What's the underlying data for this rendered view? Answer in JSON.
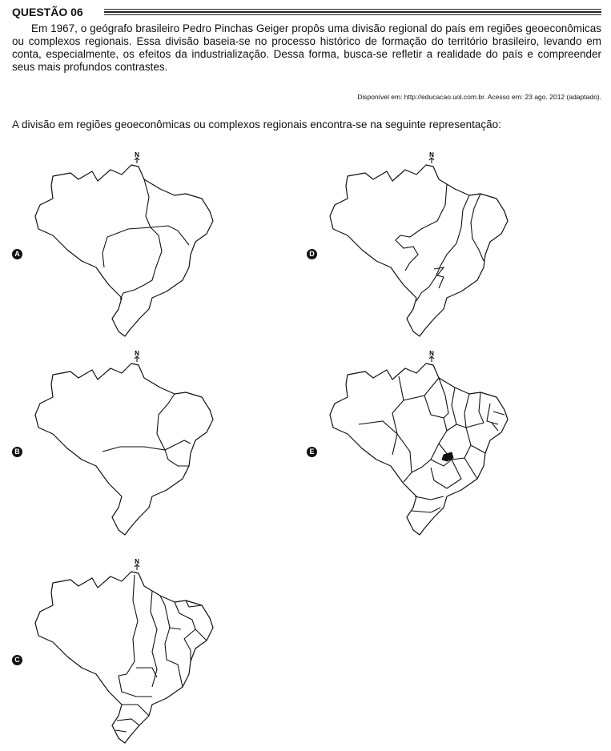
{
  "question": {
    "title": "QUESTÃO 06",
    "paragraph": "Em 1967, o geógrafo brasileiro Pedro Pinchas Geiger propôs uma divisão regional do país em regiões geoeconômicas ou complexos regionais. Essa divisão baseia-se no processo histórico de formação do território brasileiro, levando em conta, especialmente, os efeitos da industrialização. Dessa forma, busca-se refletir a realidade do país e compreender seus mais profundos contrastes.",
    "source": "Disponível em: http://educacao.uol.com.br. Acesso em: 23 ago. 2012 (adaptado).",
    "prompt": "A divisão em regiões geoeconômicas ou complexos regionais encontra-se na seguinte representação:"
  },
  "options": [
    {
      "letter": "A",
      "north": "N",
      "map_type": "three-regions"
    },
    {
      "letter": "B",
      "north": "N",
      "map_type": "four-regions"
    },
    {
      "letter": "C",
      "north": "N",
      "map_type": "states"
    },
    {
      "letter": "D",
      "north": "N",
      "map_type": "river-basins"
    },
    {
      "letter": "E",
      "north": "N",
      "map_type": "states"
    }
  ]
}
